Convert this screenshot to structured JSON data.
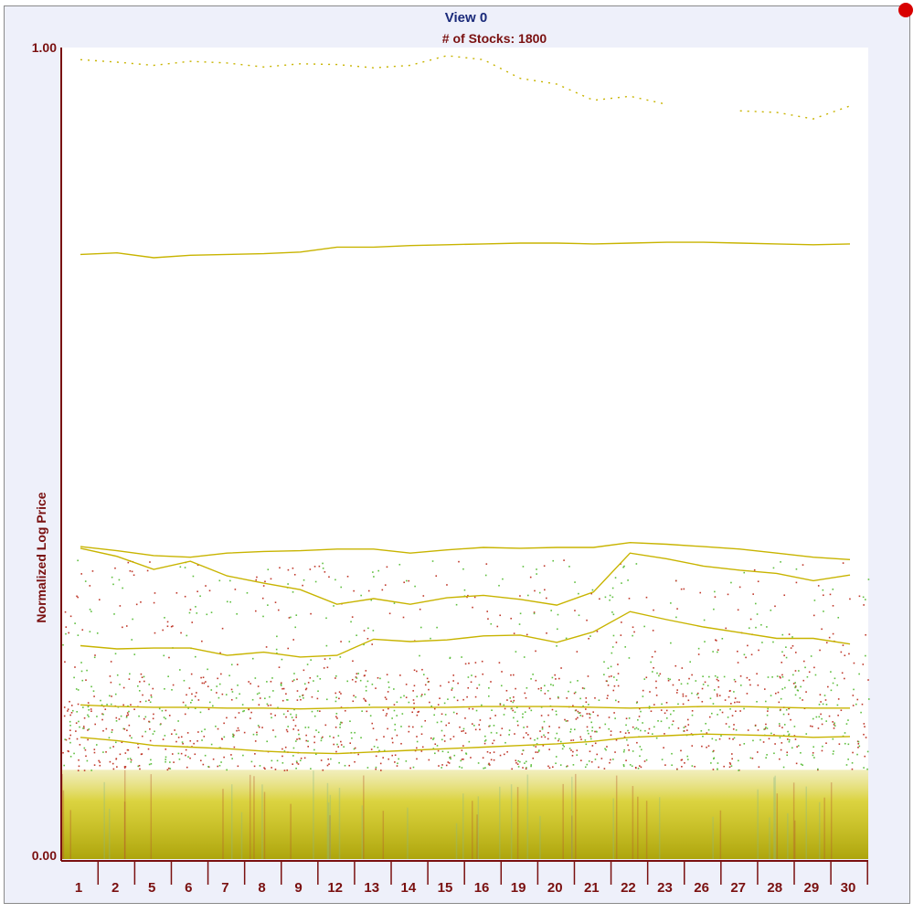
{
  "view": {
    "title": "View 0",
    "subtitle": "# of Stocks: 1800"
  },
  "colors": {
    "background": "#eef0fa",
    "axis": "#7a1010",
    "title": "#1a2a7a",
    "trend_line": "#c8b400",
    "band": "#c8c400",
    "dot_red": "#c0392b",
    "dot_green": "#5fbf3f"
  },
  "chart_data": {
    "type": "line",
    "title": "View 0",
    "subtitle": "# of Stocks: 1800",
    "ylabel": "Normalized Log Price",
    "xlabel": "",
    "ylim": [
      0.0,
      1.0
    ],
    "y_ticks": [
      "1.00",
      "0.00"
    ],
    "categories": [
      "1",
      "2",
      "5",
      "6",
      "7",
      "8",
      "9",
      "12",
      "13",
      "14",
      "15",
      "16",
      "19",
      "20",
      "21",
      "22",
      "23",
      "26",
      "27",
      "28",
      "29",
      "30"
    ],
    "series": [
      {
        "values": [
          0.745,
          0.747,
          0.741,
          0.744,
          0.745,
          0.746,
          0.748,
          0.754,
          0.754,
          0.756,
          0.757,
          0.758,
          0.759,
          0.759,
          0.758,
          0.759,
          0.76,
          0.76,
          0.759,
          0.758,
          0.757,
          0.758
        ]
      },
      {
        "values": [
          0.385,
          0.38,
          0.374,
          0.372,
          0.377,
          0.379,
          0.38,
          0.382,
          0.382,
          0.377,
          0.381,
          0.384,
          0.383,
          0.384,
          0.384,
          0.39,
          0.388,
          0.385,
          0.382,
          0.377,
          0.372,
          0.369
        ]
      },
      {
        "values": [
          0.383,
          0.373,
          0.357,
          0.367,
          0.349,
          0.34,
          0.332,
          0.314,
          0.321,
          0.314,
          0.322,
          0.325,
          0.32,
          0.313,
          0.329,
          0.377,
          0.37,
          0.361,
          0.356,
          0.352,
          0.343,
          0.35
        ]
      },
      {
        "values": [
          0.263,
          0.259,
          0.26,
          0.26,
          0.251,
          0.255,
          0.249,
          0.251,
          0.271,
          0.268,
          0.27,
          0.275,
          0.276,
          0.267,
          0.28,
          0.305,
          0.295,
          0.286,
          0.279,
          0.272,
          0.272,
          0.265
        ]
      },
      {
        "values": [
          0.19,
          0.188,
          0.187,
          0.187,
          0.186,
          0.186,
          0.185,
          0.186,
          0.187,
          0.187,
          0.187,
          0.188,
          0.188,
          0.188,
          0.187,
          0.186,
          0.187,
          0.188,
          0.188,
          0.187,
          0.186,
          0.186
        ]
      },
      {
        "values": [
          0.15,
          0.146,
          0.14,
          0.138,
          0.136,
          0.133,
          0.131,
          0.13,
          0.132,
          0.134,
          0.136,
          0.138,
          0.14,
          0.142,
          0.145,
          0.15,
          0.152,
          0.154,
          0.153,
          0.152,
          0.15,
          0.151
        ]
      },
      {
        "values": [
          0.985,
          0.982,
          0.978,
          0.983,
          0.981,
          0.976,
          0.98,
          0.979,
          0.975,
          0.978,
          0.99,
          0.985,
          0.962,
          0.955,
          0.935,
          0.94,
          0.93,
          null,
          0.922,
          0.92,
          0.912,
          0.928
        ]
      }
    ],
    "band_top": 0.11,
    "dot_count": 1800,
    "grid": false,
    "legend": "none"
  }
}
